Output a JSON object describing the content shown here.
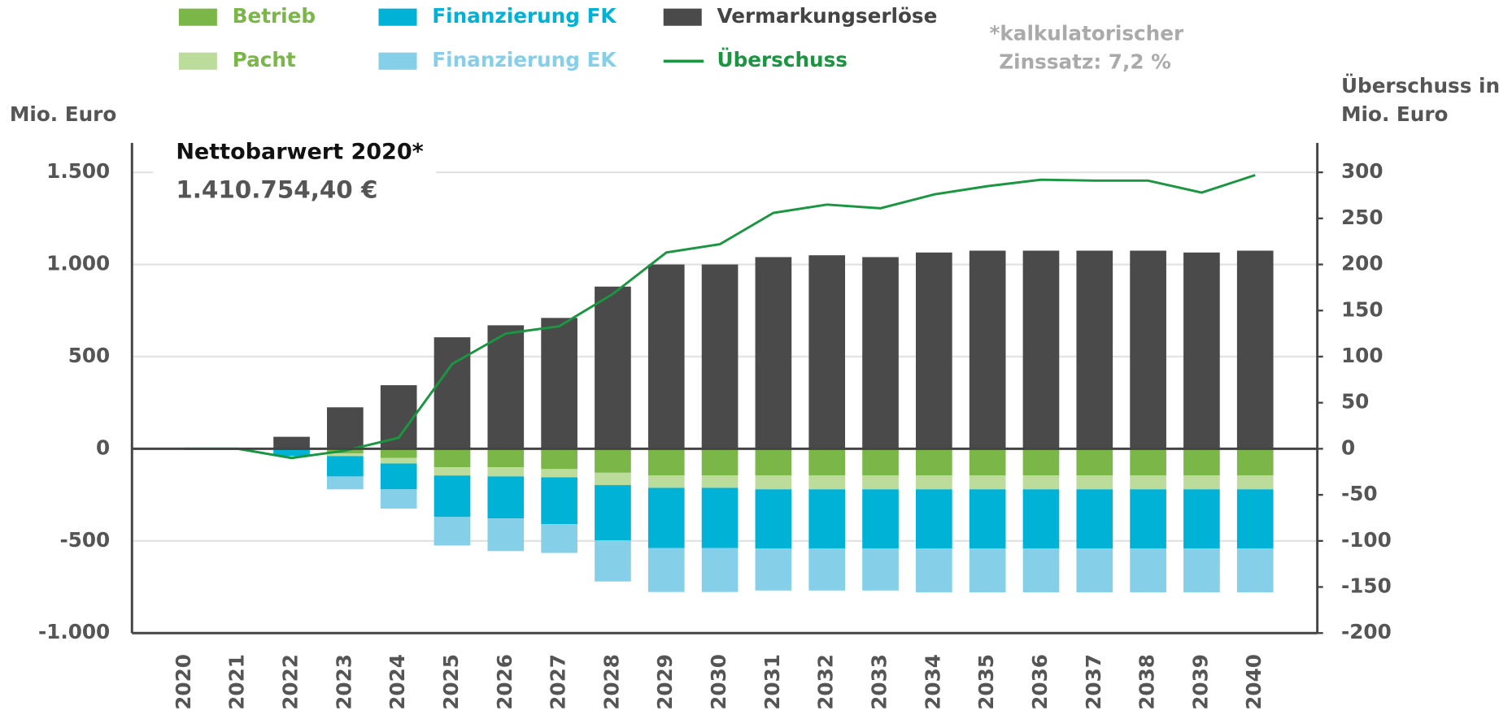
{
  "chart_data": {
    "type": "bar",
    "categories": [
      "2020",
      "2021",
      "2022",
      "2023",
      "2024",
      "2025",
      "2026",
      "2027",
      "2028",
      "2029",
      "2030",
      "2031",
      "2032",
      "2033",
      "2034",
      "2035",
      "2036",
      "2037",
      "2038",
      "2039",
      "2040"
    ],
    "series": [
      {
        "name": "Betrieb",
        "color": "#7ab648",
        "values": [
          0,
          0,
          -5,
          -25,
          -50,
          -100,
          -100,
          -110,
          -130,
          -145,
          -145,
          -145,
          -145,
          -145,
          -145,
          -145,
          -145,
          -145,
          -145,
          -145,
          -145
        ]
      },
      {
        "name": "Pacht",
        "color": "#bcdc9c",
        "values": [
          0,
          0,
          0,
          -15,
          -30,
          -45,
          -50,
          -45,
          -67,
          -67,
          -67,
          -75,
          -75,
          -75,
          -75,
          -75,
          -75,
          -75,
          -75,
          -75,
          -75
        ]
      },
      {
        "name": "Finanzierung FK",
        "color": "#00b2d6",
        "values": [
          0,
          0,
          -35,
          -110,
          -140,
          -225,
          -228,
          -254,
          -300,
          -327,
          -327,
          -321,
          -321,
          -321,
          -321,
          -321,
          -321,
          -321,
          -321,
          -321,
          -321
        ]
      },
      {
        "name": "Finanzierung EK",
        "color": "#85cfe9",
        "values": [
          0,
          0,
          0,
          -70,
          -105,
          -155,
          -177,
          -156,
          -223,
          -238,
          -238,
          -228,
          -228,
          -228,
          -238,
          -238,
          -238,
          -238,
          -238,
          -238,
          -238
        ]
      },
      {
        "name": "Vermarkungserlöse",
        "color": "#4a4a4a",
        "values": [
          0,
          0,
          65,
          225,
          345,
          605,
          670,
          710,
          880,
          1000,
          1000,
          1040,
          1050,
          1040,
          1065,
          1075,
          1075,
          1075,
          1075,
          1065,
          1075
        ]
      },
      {
        "name": "Überschuss",
        "color": "#1a9641",
        "type": "line",
        "axis": "y2",
        "values": [
          0,
          0,
          -10,
          -2,
          12,
          92,
          125,
          133,
          168,
          213,
          222,
          256,
          265,
          261,
          276,
          285,
          292,
          291,
          291,
          278,
          297
        ]
      }
    ],
    "ylabel": [
      "Mio. Euro"
    ],
    "y2label": [
      "Überschuss in",
      "Mio. Euro"
    ],
    "annotation": {
      "title": "Nettobarwert 2020*",
      "value": "1.410.754,40 €"
    },
    "footnote": [
      "*kalkulatorischer",
      "Zinssatz: 7,2 %"
    ],
    "ylim": [
      -1000,
      1660
    ],
    "yticks": [
      {
        "value": -1000,
        "label": "-1.000"
      },
      -500,
      0,
      500,
      {
        "value": 1000,
        "label": "1.000"
      },
      {
        "value": 1500,
        "label": "1.500"
      }
    ],
    "y2lim": [
      -200,
      332
    ],
    "y2ticks": [
      -200,
      -150,
      -100,
      -50,
      0,
      50,
      100,
      150,
      200,
      250,
      300
    ],
    "grid": true
  }
}
